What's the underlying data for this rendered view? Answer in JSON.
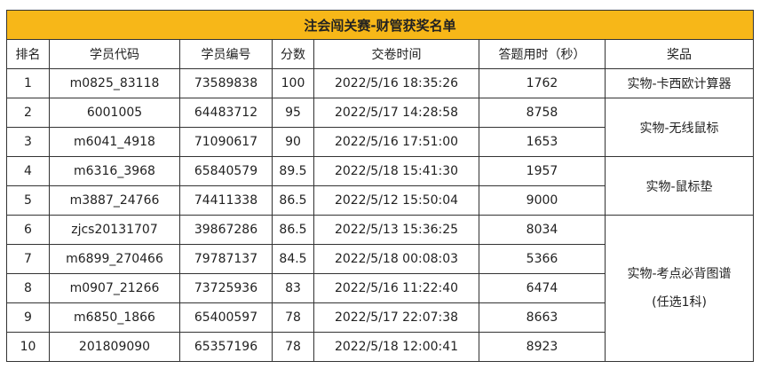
{
  "title": "注会闯关赛-财管获奖名单",
  "colors": {
    "title_bg": "#F7B718",
    "border": "#333333"
  },
  "headers": [
    "排名",
    "学员代码",
    "学员编号",
    "分数",
    "交卷时间",
    "答题用时（秒）",
    "奖品"
  ],
  "rows": [
    {
      "rank": "1",
      "code": "m0825_83118",
      "id": "73589838",
      "score": "100",
      "time": "2022/5/16 18:35:26",
      "duration": "1762"
    },
    {
      "rank": "2",
      "code": "6001005",
      "id": "64483712",
      "score": "95",
      "time": "2022/5/17 14:28:58",
      "duration": "8758"
    },
    {
      "rank": "3",
      "code": "m6041_4918",
      "id": "71090617",
      "score": "90",
      "time": "2022/5/16 17:51:00",
      "duration": "1653"
    },
    {
      "rank": "4",
      "code": "m6316_3968",
      "id": "65840579",
      "score": "89.5",
      "time": "2022/5/18 15:41:30",
      "duration": "1957"
    },
    {
      "rank": "5",
      "code": "m3887_24766",
      "id": "74411338",
      "score": "86.5",
      "time": "2022/5/12 15:50:04",
      "duration": "9000"
    },
    {
      "rank": "6",
      "code": "zjcs20131707",
      "id": "39867286",
      "score": "86.5",
      "time": "2022/5/13 15:36:25",
      "duration": "8034"
    },
    {
      "rank": "7",
      "code": "m6899_270466",
      "id": "79787137",
      "score": "84.5",
      "time": "2022/5/18 00:08:03",
      "duration": "5366"
    },
    {
      "rank": "8",
      "code": "m0907_21266",
      "id": "73725936",
      "score": "83",
      "time": "2022/5/16 11:22:40",
      "duration": "6474"
    },
    {
      "rank": "9",
      "code": "m6850_1866",
      "id": "65400597",
      "score": "78",
      "time": "2022/5/17 22:07:38",
      "duration": "8663"
    },
    {
      "rank": "10",
      "code": "201809090",
      "id": "65357196",
      "score": "78",
      "time": "2022/5/18 12:00:41",
      "duration": "8923"
    }
  ],
  "prizes": [
    {
      "label": "实物-卡西欧计算器",
      "ranks": "1"
    },
    {
      "label": "实物-无线鼠标",
      "ranks": "2-3"
    },
    {
      "label": "实物-鼠标垫",
      "ranks": "4-5"
    },
    {
      "label": "实物-考点必背图谱",
      "note": "(任选1科)",
      "ranks": "6-10"
    }
  ]
}
